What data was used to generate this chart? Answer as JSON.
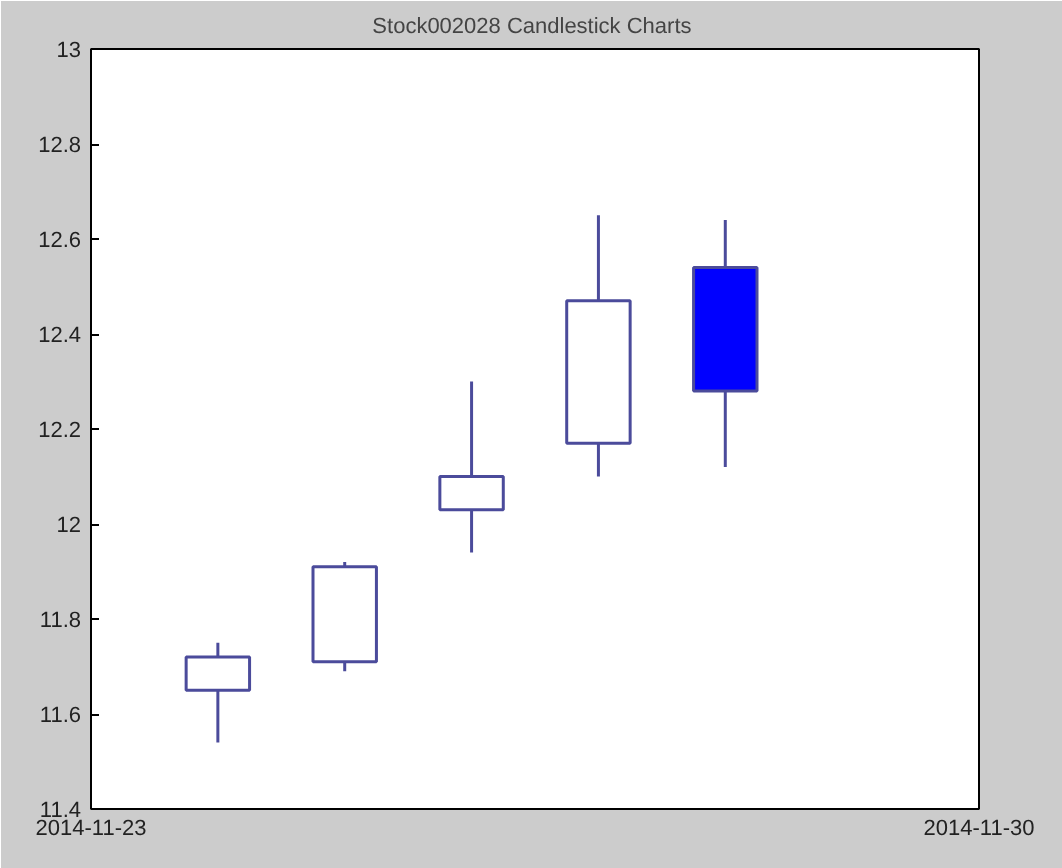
{
  "chart_data": {
    "type": "candlestick",
    "title": "Stock002028  Candlestick Charts",
    "x": [
      "2014-11-24",
      "2014-11-25",
      "2014-11-26",
      "2014-11-27",
      "2014-11-28"
    ],
    "ohlc": [
      [
        11.65,
        11.75,
        11.54,
        11.72
      ],
      [
        11.71,
        11.92,
        11.69,
        11.91
      ],
      [
        12.03,
        12.3,
        11.94,
        12.1
      ],
      [
        12.17,
        12.65,
        12.1,
        12.47
      ],
      [
        12.54,
        12.64,
        12.12,
        12.28
      ]
    ],
    "color": "#4b4b9b",
    "colors": [
      "#ffffff",
      "#ffffff",
      "#ffffff",
      "#ffffff",
      "#0000ff"
    ],
    "xlim": [
      "2014-11-23",
      "2014-11-30"
    ],
    "xticks": [
      "2014-11-23",
      "2014-11-30"
    ],
    "ylim": [
      11.4,
      13
    ],
    "yticks": [
      11.4,
      11.6,
      11.8,
      12,
      12.2,
      12.4,
      12.6,
      12.8,
      13
    ],
    "grid": false
  }
}
